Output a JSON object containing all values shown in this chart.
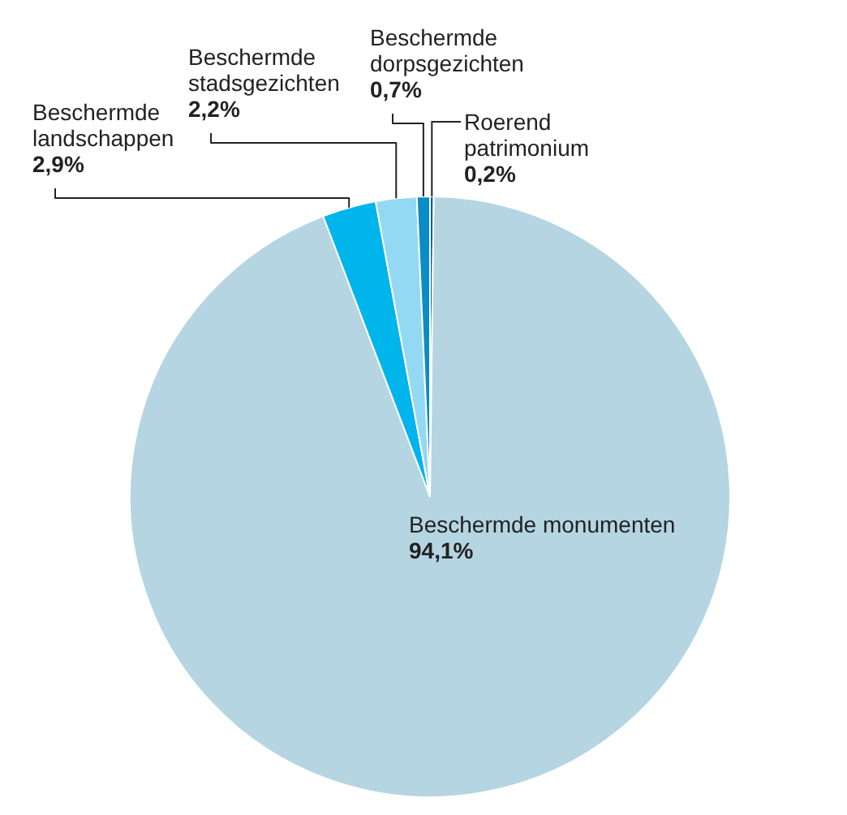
{
  "chart_data": {
    "type": "pie",
    "categories": [
      "Roerend\npatrimonium",
      "Beschermde monumenten",
      "Beschermde\nlandschappen",
      "Beschermde\nstadsgezichten",
      "Beschermde\ndorpsgezichten"
    ],
    "values": [
      0.2,
      94.1,
      2.9,
      2.2,
      0.7
    ],
    "colors": [
      "#0d5f96",
      "#b4d5e1",
      "#00b5ec",
      "#93d9f3",
      "#0a8cc7"
    ],
    "value_labels": [
      "0,2%",
      "94,1%",
      "2,9%",
      "2,2%",
      "0,7%"
    ]
  }
}
